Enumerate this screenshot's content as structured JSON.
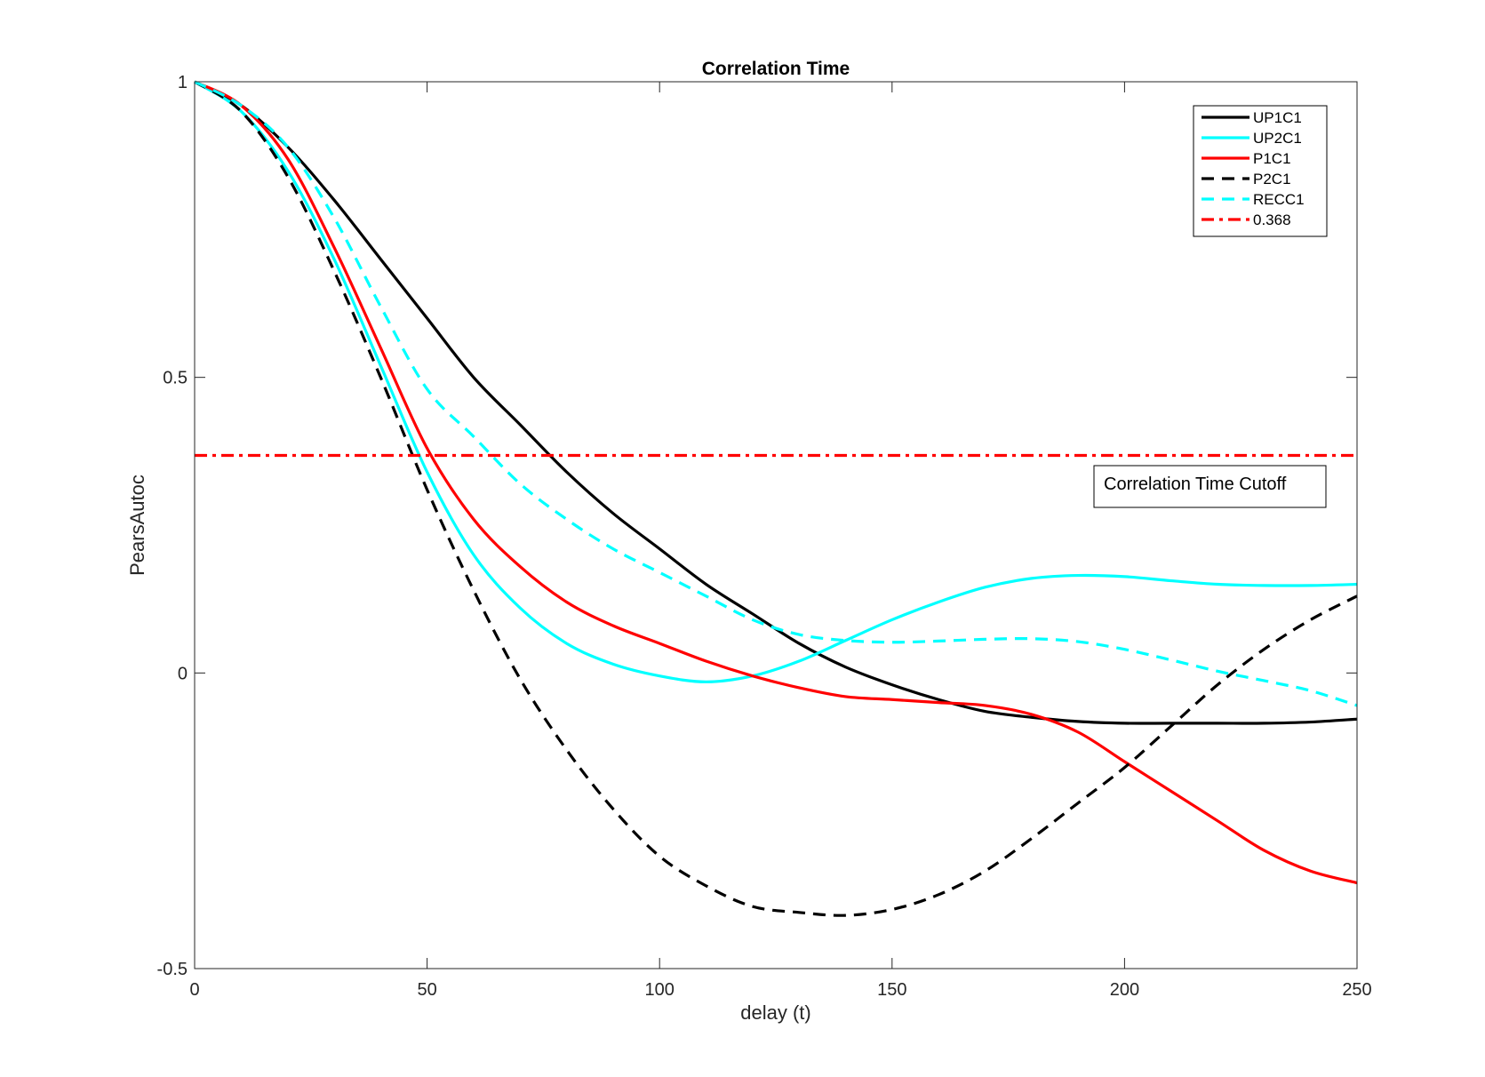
{
  "chart_data": {
    "type": "line",
    "title": "Correlation Time",
    "xlabel": "delay (t)",
    "ylabel": "PearsAutoc",
    "xlim": [
      0,
      250
    ],
    "ylim": [
      -0.5,
      1
    ],
    "xticks": [
      0,
      50,
      100,
      150,
      200,
      250
    ],
    "xtick_labels": [
      "0",
      "50",
      "100",
      "150",
      "200",
      "250"
    ],
    "yticks": [
      -0.5,
      0,
      0.5,
      1
    ],
    "ytick_labels": [
      "-0.5",
      "0",
      "0.5",
      "1"
    ],
    "grid": false,
    "legend_position": "top-right",
    "annotation": "Correlation Time Cutoff",
    "series": [
      {
        "name": "UP1C1",
        "color": "#000000",
        "style": "solid",
        "x": [
          0,
          10,
          20,
          30,
          40,
          50,
          60,
          70,
          80,
          90,
          100,
          110,
          120,
          130,
          140,
          150,
          160,
          170,
          180,
          190,
          200,
          210,
          220,
          230,
          240,
          250
        ],
        "y": [
          1.0,
          0.96,
          0.89,
          0.8,
          0.7,
          0.6,
          0.5,
          0.42,
          0.34,
          0.27,
          0.21,
          0.15,
          0.1,
          0.05,
          0.01,
          -0.02,
          -0.045,
          -0.065,
          -0.075,
          -0.082,
          -0.085,
          -0.085,
          -0.085,
          -0.085,
          -0.083,
          -0.078
        ]
      },
      {
        "name": "UP2C1",
        "color": "#00ffff",
        "style": "solid",
        "x": [
          0,
          10,
          20,
          30,
          40,
          50,
          60,
          70,
          80,
          90,
          100,
          110,
          120,
          130,
          140,
          150,
          160,
          170,
          180,
          190,
          200,
          210,
          220,
          230,
          240,
          250
        ],
        "y": [
          1.0,
          0.95,
          0.85,
          0.7,
          0.52,
          0.34,
          0.2,
          0.11,
          0.05,
          0.015,
          -0.005,
          -0.015,
          -0.005,
          0.02,
          0.055,
          0.09,
          0.12,
          0.145,
          0.16,
          0.165,
          0.163,
          0.156,
          0.15,
          0.148,
          0.148,
          0.15
        ]
      },
      {
        "name": "P1C1",
        "color": "#ff0000",
        "style": "solid",
        "x": [
          0,
          10,
          20,
          30,
          40,
          50,
          60,
          70,
          80,
          90,
          100,
          110,
          120,
          130,
          140,
          150,
          160,
          170,
          180,
          190,
          200,
          210,
          220,
          230,
          240,
          250
        ],
        "y": [
          1.0,
          0.96,
          0.87,
          0.72,
          0.55,
          0.38,
          0.26,
          0.18,
          0.12,
          0.08,
          0.05,
          0.02,
          -0.005,
          -0.025,
          -0.04,
          -0.045,
          -0.05,
          -0.055,
          -0.07,
          -0.1,
          -0.15,
          -0.2,
          -0.25,
          -0.3,
          -0.335,
          -0.355
        ]
      },
      {
        "name": "P2C1",
        "color": "#000000",
        "style": "dashed",
        "x": [
          0,
          10,
          20,
          30,
          40,
          50,
          60,
          70,
          80,
          90,
          100,
          110,
          120,
          130,
          140,
          150,
          160,
          170,
          180,
          190,
          200,
          210,
          220,
          230,
          240,
          250
        ],
        "y": [
          1.0,
          0.95,
          0.84,
          0.68,
          0.5,
          0.31,
          0.14,
          -0.01,
          -0.13,
          -0.23,
          -0.31,
          -0.36,
          -0.395,
          -0.405,
          -0.41,
          -0.4,
          -0.375,
          -0.335,
          -0.28,
          -0.22,
          -0.16,
          -0.09,
          -0.02,
          0.04,
          0.09,
          0.13
        ]
      },
      {
        "name": "RECC1",
        "color": "#00ffff",
        "style": "dashed",
        "x": [
          0,
          10,
          20,
          30,
          40,
          50,
          60,
          70,
          80,
          90,
          100,
          110,
          120,
          130,
          140,
          150,
          160,
          170,
          180,
          190,
          200,
          210,
          220,
          230,
          240,
          250
        ],
        "y": [
          1.0,
          0.96,
          0.89,
          0.77,
          0.62,
          0.48,
          0.4,
          0.32,
          0.26,
          0.21,
          0.17,
          0.13,
          0.09,
          0.065,
          0.055,
          0.052,
          0.054,
          0.057,
          0.058,
          0.053,
          0.04,
          0.022,
          0.003,
          -0.013,
          -0.03,
          -0.055
        ]
      },
      {
        "name": "0.368",
        "color": "#ff0000",
        "style": "dashdot",
        "x": [
          0,
          250
        ],
        "y": [
          0.368,
          0.368
        ]
      }
    ]
  }
}
